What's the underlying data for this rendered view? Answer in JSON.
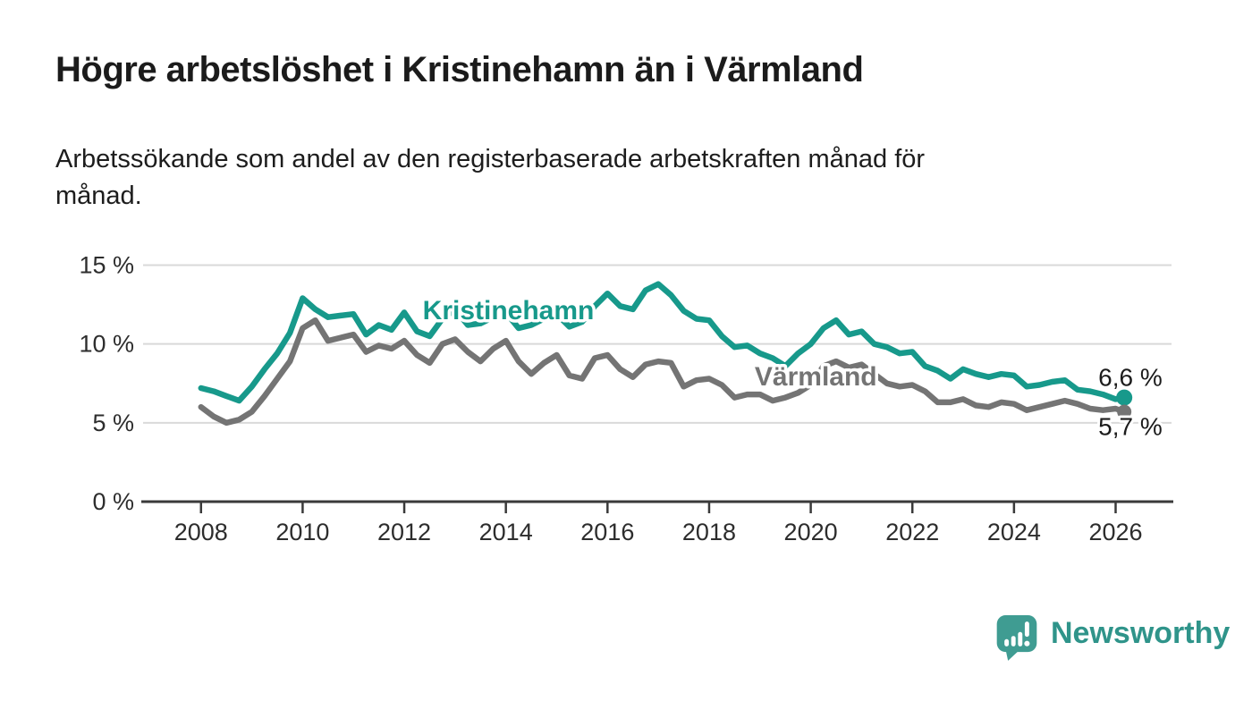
{
  "title": "Högre arbetslöshet i Kristinehamn än i Värmland",
  "subtitle": {
    "lines": [
      "Arbetssökande som andel av den registerbaserade arbetskraften månad för",
      "månad."
    ]
  },
  "footer": {
    "logo_text": "Newsworthy"
  },
  "colors": {
    "kristinehamn": "#17998b",
    "varmland": "#747474",
    "grid": "#d9d9d9",
    "axis": "#3a3a3a",
    "logo_bubble": "#3f9c92",
    "logo_text": "#2f948a"
  },
  "chart_data": {
    "type": "line",
    "title": "Högre arbetslöshet i Kristinehamn än i Värmland",
    "subtitle": "Arbetssökande som andel av den registerbaserade arbetskraften månad för månad.",
    "xlabel": "",
    "ylabel": "",
    "xlim": [
      2006.86,
      2027.1
    ],
    "ylim": [
      0,
      15
    ],
    "grid": "horizontal",
    "legend_position": "inline-labels",
    "x_ticks": [
      2008,
      2010,
      2012,
      2014,
      2016,
      2018,
      2020,
      2022,
      2024,
      2026
    ],
    "x_tick_labels": [
      "2008",
      "2010",
      "2012",
      "2014",
      "2016",
      "2018",
      "2020",
      "2022",
      "2024",
      "2026"
    ],
    "y_ticks": [
      0,
      5,
      10,
      15
    ],
    "y_tick_labels": [
      "0 %",
      "5 %",
      "10 %",
      "15 %"
    ],
    "x": [
      2008,
      2008.25,
      2008.5,
      2008.75,
      2009,
      2009.25,
      2009.5,
      2009.75,
      2010,
      2010.25,
      2010.5,
      2010.75,
      2011,
      2011.25,
      2011.5,
      2011.75,
      2012,
      2012.25,
      2012.5,
      2012.75,
      2013,
      2013.25,
      2013.5,
      2013.75,
      2014,
      2014.25,
      2014.5,
      2014.75,
      2015,
      2015.25,
      2015.5,
      2015.75,
      2016,
      2016.25,
      2016.5,
      2016.75,
      2017,
      2017.25,
      2017.5,
      2017.75,
      2018,
      2018.25,
      2018.5,
      2018.75,
      2019,
      2019.25,
      2019.5,
      2019.75,
      2020,
      2020.25,
      2020.5,
      2020.75,
      2021,
      2021.25,
      2021.5,
      2021.75,
      2022,
      2022.25,
      2022.5,
      2022.75,
      2023,
      2023.25,
      2023.5,
      2023.75,
      2024,
      2024.25,
      2024.5,
      2024.75,
      2025,
      2025.25,
      2025.5,
      2025.75,
      2026,
      2026.17
    ],
    "series": [
      {
        "name": "Kristinehamn",
        "color": "#17998b",
        "label": {
          "text": "Kristinehamn",
          "x": 2014.05,
          "y": 12.15
        },
        "end_label": "6,6 %",
        "end_value": 6.6,
        "values": [
          7.2,
          7.0,
          6.7,
          6.4,
          7.3,
          8.4,
          9.4,
          10.7,
          12.9,
          12.2,
          11.7,
          11.8,
          11.9,
          10.6,
          11.2,
          10.9,
          12.0,
          10.8,
          10.5,
          11.6,
          12.2,
          11.2,
          11.3,
          11.7,
          12.0,
          11.0,
          11.2,
          11.6,
          11.9,
          11.1,
          11.4,
          12.4,
          13.2,
          12.4,
          12.2,
          13.4,
          13.8,
          13.1,
          12.1,
          11.6,
          11.5,
          10.5,
          9.8,
          9.9,
          9.4,
          9.1,
          8.6,
          9.4,
          10.0,
          11.0,
          11.5,
          10.6,
          10.8,
          10.0,
          9.8,
          9.4,
          9.5,
          8.6,
          8.3,
          7.8,
          8.4,
          8.1,
          7.9,
          8.1,
          8.0,
          7.3,
          7.4,
          7.6,
          7.7,
          7.1,
          7.0,
          6.8,
          6.5,
          6.6
        ]
      },
      {
        "name": "Värmland",
        "color": "#747474",
        "label": {
          "text": "Värmland",
          "x": 2020.1,
          "y": 7.95
        },
        "end_label": "5,7 %",
        "end_value": 5.7,
        "values": [
          6.0,
          5.4,
          5.0,
          5.2,
          5.7,
          6.7,
          7.8,
          8.9,
          11.0,
          11.5,
          10.2,
          10.4,
          10.6,
          9.5,
          9.9,
          9.7,
          10.2,
          9.3,
          8.8,
          10.0,
          10.3,
          9.5,
          8.9,
          9.7,
          10.2,
          8.9,
          8.1,
          8.8,
          9.3,
          8.0,
          7.8,
          9.1,
          9.3,
          8.4,
          7.9,
          8.7,
          8.9,
          8.8,
          7.3,
          7.7,
          7.8,
          7.4,
          6.6,
          6.8,
          6.8,
          6.4,
          6.6,
          6.9,
          7.4,
          8.6,
          8.9,
          8.5,
          8.7,
          8.1,
          7.5,
          7.3,
          7.4,
          7.0,
          6.3,
          6.3,
          6.5,
          6.1,
          6.0,
          6.3,
          6.2,
          5.8,
          6.0,
          6.2,
          6.4,
          6.2,
          5.9,
          5.8,
          5.9,
          5.7
        ]
      }
    ]
  }
}
